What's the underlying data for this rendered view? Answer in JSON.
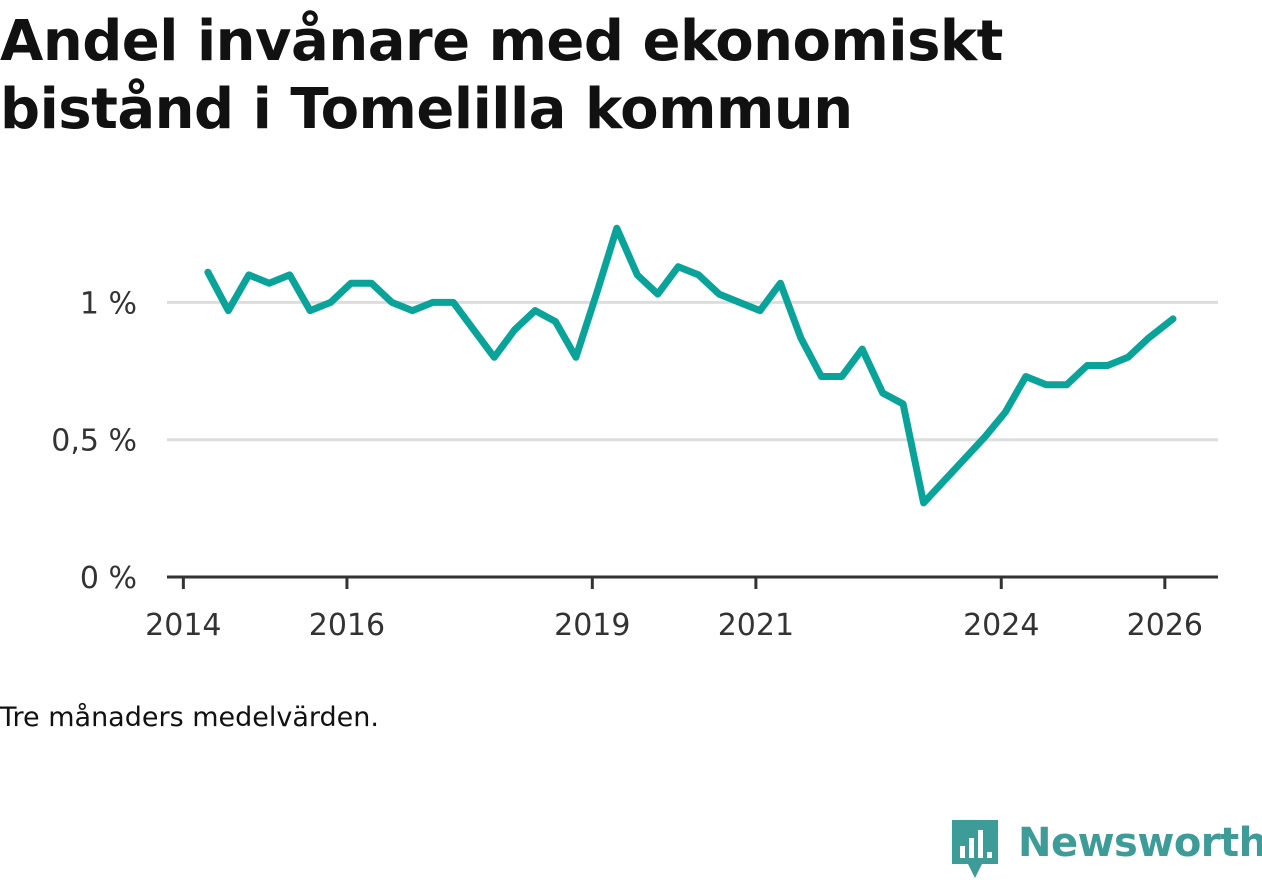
{
  "title": "Andel invånare med ekonomiskt bistånd i Tomelilla kommun",
  "footnote": "Tre månaders medelvärden.",
  "brand": {
    "name": "Newsworthy",
    "icon": "newsworthy-logo-icon",
    "color": "#3d9b98"
  },
  "colors": {
    "line": "#0aa39a",
    "grid": "#dddddd",
    "axis": "#333333"
  },
  "chart_data": {
    "type": "line",
    "title": "Andel invånare med ekonomiskt bistånd i Tomelilla kommun",
    "xlabel": "",
    "ylabel": "",
    "ylim": [
      0,
      1.3
    ],
    "xlim": [
      2013.8,
      2026.65
    ],
    "grid": true,
    "yticks": [
      {
        "value": 0,
        "label": "0 %"
      },
      {
        "value": 0.5,
        "label": "0,5 %"
      },
      {
        "value": 1,
        "label": "1 %"
      }
    ],
    "xticks": [
      {
        "value": 2014,
        "label": "2014"
      },
      {
        "value": 2016,
        "label": "2016"
      },
      {
        "value": 2019,
        "label": "2019"
      },
      {
        "value": 2021,
        "label": "2021"
      },
      {
        "value": 2024,
        "label": "2024"
      },
      {
        "value": 2026,
        "label": "2026"
      }
    ],
    "series": [
      {
        "name": "Andel invånare med ekonomiskt bistånd",
        "x": [
          2014.3,
          2014.55,
          2014.8,
          2015.05,
          2015.3,
          2015.55,
          2015.8,
          2016.05,
          2016.3,
          2016.55,
          2016.8,
          2017.05,
          2017.3,
          2017.55,
          2017.8,
          2018.05,
          2018.3,
          2018.55,
          2018.8,
          2019.05,
          2019.3,
          2019.55,
          2019.8,
          2020.05,
          2020.3,
          2020.55,
          2020.8,
          2021.05,
          2021.3,
          2021.55,
          2021.8,
          2022.05,
          2022.3,
          2022.55,
          2022.8,
          2023.05,
          2023.3,
          2023.55,
          2023.8,
          2024.05,
          2024.3,
          2024.55,
          2024.8,
          2025.05,
          2025.3,
          2025.55,
          2025.8,
          2026.1
        ],
        "values": [
          1.11,
          0.97,
          1.1,
          1.07,
          1.1,
          0.97,
          1.0,
          1.07,
          1.07,
          1.0,
          0.97,
          1.0,
          1.0,
          0.9,
          0.8,
          0.9,
          0.97,
          0.93,
          0.8,
          1.03,
          1.27,
          1.1,
          1.03,
          1.13,
          1.1,
          1.03,
          1.0,
          0.97,
          1.07,
          0.87,
          0.73,
          0.73,
          0.83,
          0.67,
          0.63,
          0.27,
          0.35,
          0.43,
          0.51,
          0.6,
          0.73,
          0.7,
          0.7,
          0.77,
          0.77,
          0.8,
          0.87,
          0.94
        ]
      }
    ]
  }
}
